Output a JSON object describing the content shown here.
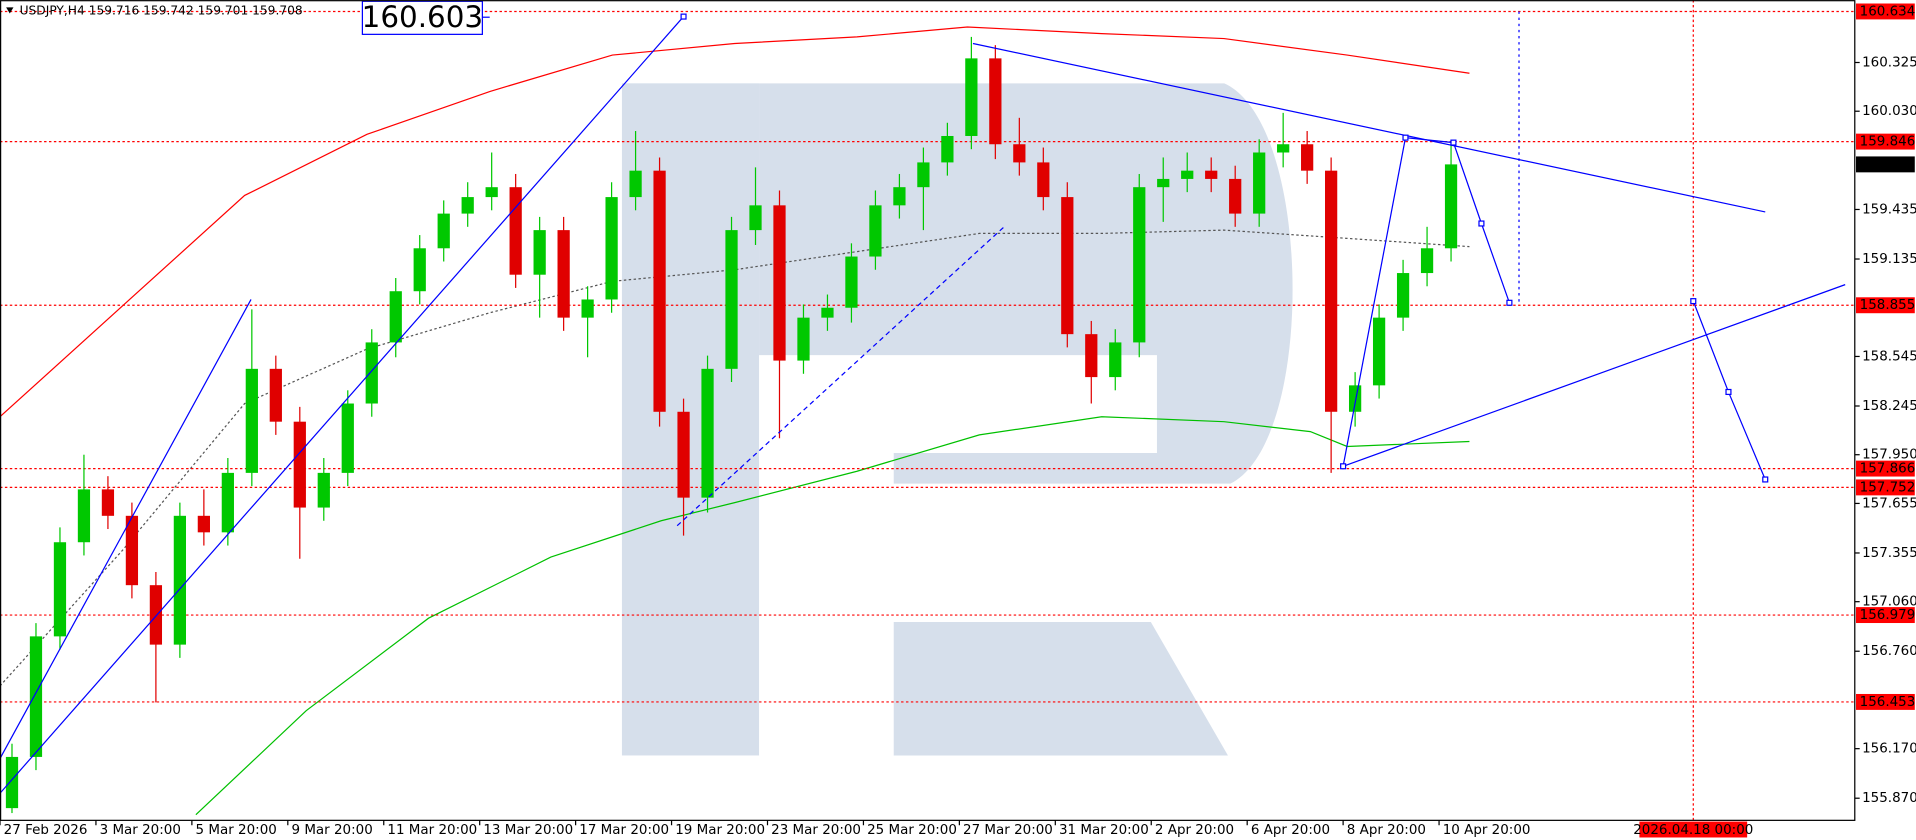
{
  "chart_data": {
    "type": "candlestick",
    "title": "USDJPY,H4  159.716 159.742 159.701 159.708",
    "x": [
      1.5,
      4.5,
      7.5,
      10.5,
      13.5,
      16.5,
      19.5,
      22.5,
      25.5,
      28.5,
      31.5,
      34.5,
      37.5,
      40.5,
      43.5,
      46.5,
      49.5,
      52.5,
      55.5,
      58.5,
      61.5,
      64.5,
      67.5,
      70.5,
      73.5,
      76.5,
      79.5,
      82.5,
      85.5,
      88.5,
      91.5,
      94.5,
      97.5,
      100.5,
      103.5,
      106.5,
      109.5,
      112.5,
      115.5,
      118.5,
      121.5,
      124.5,
      127.5,
      130.5,
      133.5,
      136.5,
      139.5,
      142.5,
      145.5,
      148.5,
      151.5,
      154.5,
      157.5,
      160.5,
      163.5,
      166.5,
      169.5,
      172.5,
      175.5,
      178.5,
      181.5
    ],
    "open": [
      155.81,
      156.12,
      156.85,
      157.42,
      157.74,
      157.58,
      157.16,
      156.8,
      157.58,
      157.48,
      157.84,
      158.47,
      158.15,
      157.63,
      157.84,
      158.26,
      158.63,
      158.94,
      159.2,
      159.41,
      159.51,
      159.57,
      159.04,
      159.31,
      158.78,
      158.89,
      159.51,
      159.67,
      158.21,
      157.69,
      158.47,
      159.31,
      159.46,
      158.52,
      158.78,
      158.84,
      159.15,
      159.46,
      159.57,
      159.72,
      159.88,
      160.35,
      159.83,
      159.72,
      159.51,
      158.68,
      158.42,
      158.63,
      159.57,
      159.62,
      159.67,
      159.62,
      159.41,
      159.78,
      159.83,
      159.67,
      158.21,
      158.37,
      158.78,
      159.05,
      159.2
    ],
    "high": [
      156.2,
      156.93,
      157.51,
      157.95,
      157.82,
      157.66,
      157.24,
      157.66,
      157.74,
      157.93,
      158.83,
      158.55,
      158.24,
      157.93,
      158.34,
      158.71,
      159.02,
      159.28,
      159.49,
      159.6,
      159.78,
      159.65,
      159.39,
      159.39,
      158.97,
      159.6,
      159.91,
      159.75,
      158.29,
      158.55,
      159.39,
      159.69,
      159.55,
      158.86,
      158.92,
      159.23,
      159.55,
      159.65,
      159.81,
      159.96,
      160.48,
      160.43,
      159.99,
      159.81,
      159.6,
      158.76,
      158.71,
      159.65,
      159.75,
      159.78,
      159.75,
      159.7,
      159.86,
      160.02,
      159.91,
      159.75,
      158.45,
      158.86,
      159.13,
      159.33,
      159.85
    ],
    "low": [
      155.78,
      156.04,
      156.77,
      157.34,
      157.5,
      157.08,
      156.45,
      156.72,
      157.4,
      157.4,
      157.76,
      158.07,
      157.32,
      157.55,
      157.76,
      158.18,
      158.54,
      158.86,
      159.12,
      159.33,
      159.43,
      158.96,
      158.78,
      158.7,
      158.54,
      158.81,
      159.43,
      158.12,
      157.46,
      157.6,
      158.39,
      159.22,
      158.05,
      158.44,
      158.7,
      158.75,
      159.07,
      159.38,
      159.31,
      159.64,
      159.8,
      159.74,
      159.64,
      159.43,
      158.6,
      158.26,
      158.34,
      158.54,
      159.36,
      159.54,
      159.54,
      159.33,
      159.33,
      159.69,
      159.59,
      157.84,
      158.12,
      158.29,
      158.7,
      158.97,
      159.12
    ],
    "close": [
      156.12,
      156.85,
      157.42,
      157.74,
      157.58,
      157.16,
      156.8,
      157.58,
      157.48,
      157.84,
      158.47,
      158.15,
      157.63,
      157.84,
      158.26,
      158.63,
      158.94,
      159.2,
      159.41,
      159.51,
      159.57,
      159.04,
      159.31,
      158.78,
      158.89,
      159.51,
      159.67,
      158.21,
      157.69,
      158.47,
      159.31,
      159.46,
      158.52,
      158.78,
      158.84,
      159.15,
      159.46,
      159.57,
      159.72,
      159.88,
      160.35,
      159.83,
      159.72,
      159.51,
      158.68,
      158.42,
      158.63,
      159.57,
      159.62,
      159.67,
      159.62,
      159.41,
      159.78,
      159.83,
      159.67,
      158.21,
      158.37,
      158.78,
      159.05,
      159.2,
      159.708
    ],
    "up_color": "#00c800",
    "down_color": "#e00000",
    "xlim": [
      0,
      232
    ],
    "ylim": [
      155.736,
      160.703
    ],
    "xticks": [
      {
        "value": 0,
        "label": "27 Feb 2026"
      },
      {
        "value": 12,
        "label": "3 Mar 20:00"
      },
      {
        "value": 24,
        "label": "5 Mar 20:00"
      },
      {
        "value": 36,
        "label": "9 Mar 20:00"
      },
      {
        "value": 48,
        "label": "11 Mar 20:00"
      },
      {
        "value": 60,
        "label": "13 Mar 20:00"
      },
      {
        "value": 72,
        "label": "17 Mar 20:00"
      },
      {
        "value": 84,
        "label": "19 Mar 20:00"
      },
      {
        "value": 96,
        "label": "23 Mar 20:00"
      },
      {
        "value": 108,
        "label": "25 Mar 20:00"
      },
      {
        "value": 120,
        "label": "27 Mar 20:00"
      },
      {
        "value": 132,
        "label": "31 Mar 20:00"
      },
      {
        "value": 144,
        "label": "2 Apr 20:00"
      },
      {
        "value": 156,
        "label": "6 Apr 20:00"
      },
      {
        "value": 168,
        "label": "8 Apr 20:00"
      },
      {
        "value": 180,
        "label": "10 Apr 20:00"
      }
    ],
    "yticks": [
      160.325,
      {
        "value": 160.03,
        "label": "160.030"
      },
      159.435,
      159.135,
      158.545,
      158.245,
      {
        "value": 157.95,
        "label": "157.950"
      },
      157.655,
      157.355,
      {
        "value": 157.06,
        "label": "157.060"
      },
      {
        "value": 156.76,
        "label": "156.760"
      },
      {
        "value": 156.17,
        "label": "156.170"
      },
      {
        "value": 155.87,
        "label": "155.870"
      }
    ],
    "levels": [
      160.634,
      159.846,
      158.855,
      157.866,
      157.752,
      156.979,
      156.453
    ],
    "level_color": "#ff0000",
    "current_price": 159.708,
    "time_marker": {
      "value": 211.8,
      "label": "2026.04.18 00:00"
    },
    "moving_averages": [
      {
        "color": "#ff0000",
        "x": [
          0,
          15.3,
          30.6,
          45.9,
          61.3,
          76.6,
          91.9,
          107.2,
          121,
          137.8,
          153.1,
          168.5,
          183.8
        ],
        "values": [
          158.18,
          158.85,
          159.52,
          159.89,
          160.15,
          160.37,
          160.44,
          160.48,
          160.54,
          160.5,
          160.47,
          160.37,
          160.26
        ]
      },
      {
        "color": "#00c000",
        "x": [
          24.5,
          38.3,
          53.6,
          68.9,
          82.7,
          91.9,
          107.2,
          122.5,
          137.8,
          153.1,
          163.9,
          168.5,
          183.8
        ],
        "values": [
          155.77,
          156.4,
          156.96,
          157.33,
          157.55,
          157.66,
          157.85,
          158.07,
          158.18,
          158.15,
          158.09,
          158.0,
          158.03
        ]
      },
      {
        "color": "#555555",
        "dash": "2,2",
        "x": [
          0,
          15.3,
          30.6,
          45.9,
          61.3,
          76.6,
          91.9,
          107.2,
          122.5,
          137.8,
          153.1,
          168.5,
          183.8
        ],
        "values": [
          156.55,
          157.37,
          158.26,
          158.59,
          158.81,
          159.0,
          159.07,
          159.18,
          159.29,
          159.29,
          159.31,
          159.26,
          159.21
        ]
      }
    ],
    "trend_lines": [
      {
        "color": "#0000ff",
        "x": [
          0,
          85.5
        ],
        "values": [
          155.9,
          160.603
        ]
      },
      {
        "color": "#0000ff",
        "x": [
          0,
          31.4
        ],
        "values": [
          156.11,
          158.89
        ]
      },
      {
        "color": "#0000ff",
        "dash": "4,3",
        "x": [
          84.7,
          125.6
        ],
        "values": [
          157.52,
          159.33
        ]
      },
      {
        "color": "#0000ff",
        "x": [
          121.7,
          220.8
        ],
        "values": [
          160.44,
          159.42
        ]
      },
      {
        "color": "#0000ff",
        "x": [
          168,
          230.8
        ],
        "values": [
          157.88,
          158.98
        ]
      },
      {
        "color": "#0000ff",
        "markers": true,
        "x": [
          168,
          175.8,
          181.8,
          185.3,
          188.8
        ],
        "values": [
          157.88,
          159.87,
          159.84,
          159.35,
          158.87
        ]
      },
      {
        "color": "#0000ff",
        "dash": "2,3",
        "x": [
          190,
          190
        ],
        "values": [
          160.634,
          158.855
        ]
      },
      {
        "color": "#0000ff",
        "markers": true,
        "x": [
          211.8,
          216.2,
          220.8
        ],
        "values": [
          158.88,
          158.33,
          157.8
        ]
      }
    ]
  }
}
